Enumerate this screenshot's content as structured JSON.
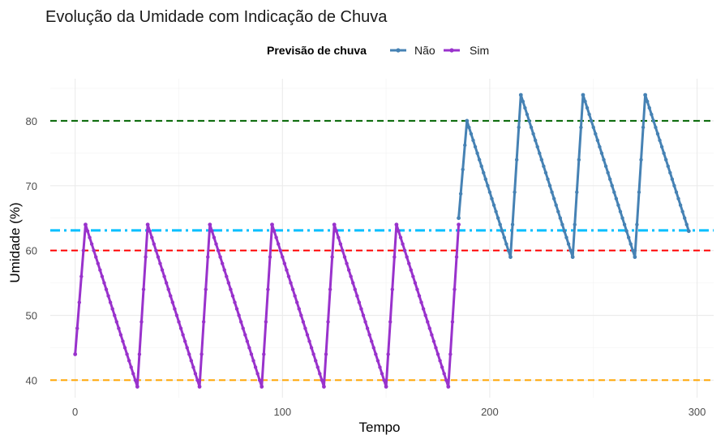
{
  "chart_data": {
    "type": "line",
    "title": "Evolução da Umidade com Indicação de Chuva",
    "xlabel": "Tempo",
    "ylabel": "Umidade (%)",
    "xlim": [
      -12,
      308
    ],
    "ylim": [
      37.3,
      86.5
    ],
    "xticks": [
      0,
      100,
      200,
      300
    ],
    "yticks": [
      40,
      50,
      60,
      70,
      80
    ],
    "grid": true,
    "legend": {
      "title": "Previsão de chuva",
      "placement": "top",
      "entries": [
        {
          "label": "Não",
          "color": "#4682B4"
        },
        {
          "label": "Sim",
          "color": "#9932CC"
        }
      ]
    },
    "series": [
      {
        "name": "Sim",
        "color": "#9932CC",
        "points": [
          [
            0,
            44
          ],
          [
            5,
            64
          ],
          [
            30,
            39
          ],
          [
            35,
            64
          ],
          [
            60,
            39
          ],
          [
            65,
            64
          ],
          [
            90,
            39
          ],
          [
            95,
            64
          ],
          [
            120,
            39
          ],
          [
            125,
            64
          ],
          [
            150,
            39
          ],
          [
            155,
            64
          ],
          [
            180,
            39
          ],
          [
            185,
            64
          ]
        ]
      },
      {
        "name": "Não",
        "color": "#4682B4",
        "points": [
          [
            185,
            65
          ],
          [
            189,
            80
          ],
          [
            210,
            59
          ],
          [
            215,
            84
          ],
          [
            240,
            59
          ],
          [
            245,
            84
          ],
          [
            270,
            59
          ],
          [
            275,
            84
          ],
          [
            296,
            63
          ]
        ]
      }
    ],
    "reference_lines": [
      {
        "y": 80,
        "color": "#006400",
        "style": "dashed"
      },
      {
        "y": 63.1,
        "color": "#00BFFF",
        "style": "dotdash"
      },
      {
        "y": 60,
        "color": "#FF0000",
        "style": "dashed"
      },
      {
        "y": 40,
        "color": "#FFA500",
        "style": "dashed"
      }
    ]
  }
}
